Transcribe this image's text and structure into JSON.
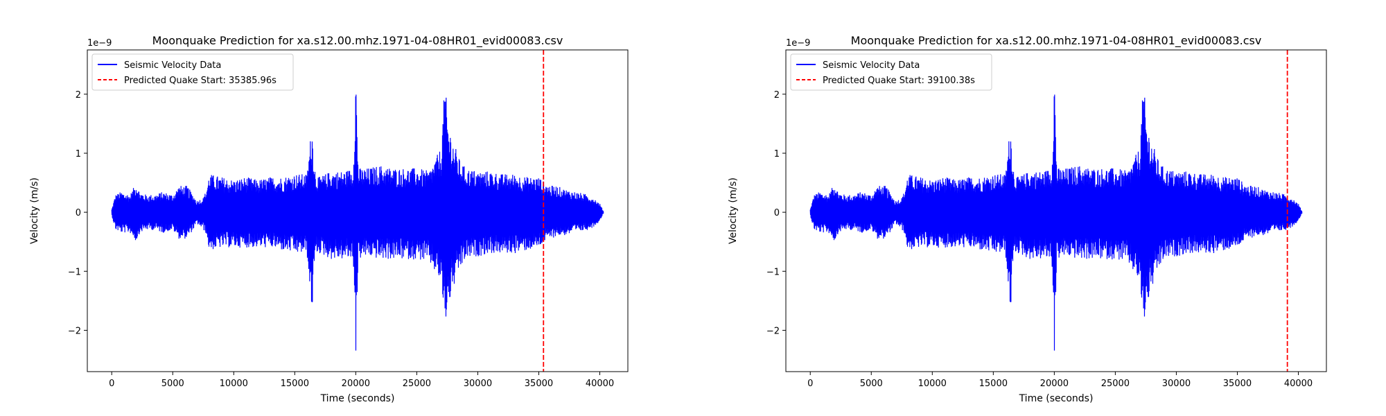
{
  "chart_data": [
    {
      "type": "line",
      "title": "Moonquake Prediction for xa.s12.00.mhz.1971-04-08HR01_evid00083.csv",
      "xlabel": "Time (seconds)",
      "ylabel": "Velocity (m/s)",
      "offset_text": "1e−9",
      "xlim": [
        -2000,
        42300
      ],
      "ylim": [
        -2.7,
        2.75
      ],
      "xticks": [
        0,
        5000,
        10000,
        15000,
        20000,
        25000,
        30000,
        35000,
        40000
      ],
      "yticks": [
        -2,
        -1,
        0,
        1,
        2
      ],
      "ytick_labels": [
        "−2",
        "−1",
        "0",
        "1",
        "2"
      ],
      "legend_position": "top-left",
      "series": [
        {
          "name": "Seismic Velocity Data",
          "color": "#0000ff",
          "style": "solid",
          "envelope": {
            "t": [
              0,
              300,
              800,
              1500,
              2000,
              2300,
              2800,
              3500,
              4200,
              5000,
              5500,
              6200,
              6500,
              7000,
              7500,
              7700,
              8000,
              9000,
              10000,
              11000,
              12000,
              13000,
              14000,
              15000,
              16000,
              16400,
              16700,
              17000,
              18000,
              19000,
              19800,
              20000,
              20200,
              21000,
              22000,
              23000,
              24000,
              25000,
              26000,
              27000,
              27300,
              27600,
              28000,
              28500,
              29000,
              30000,
              31000,
              32000,
              33000,
              34000,
              35000,
              35500,
              36000,
              36500,
              37000,
              38000,
              39000,
              39500,
              40000,
              40300
            ],
            "upper": [
              0.05,
              0.3,
              0.35,
              0.3,
              0.5,
              0.35,
              0.3,
              0.3,
              0.35,
              0.3,
              0.45,
              0.45,
              0.35,
              0.2,
              0.25,
              0.35,
              0.65,
              0.6,
              0.55,
              0.6,
              0.55,
              0.6,
              0.6,
              0.65,
              0.65,
              1.5,
              0.65,
              0.6,
              0.7,
              0.7,
              0.75,
              2.5,
              0.75,
              0.75,
              0.8,
              0.75,
              0.75,
              0.75,
              0.7,
              1.1,
              2.2,
              1.5,
              1.2,
              0.9,
              0.75,
              0.7,
              0.7,
              0.65,
              0.65,
              0.6,
              0.6,
              0.5,
              0.45,
              0.45,
              0.4,
              0.35,
              0.3,
              0.25,
              0.15,
              0.02
            ],
            "lower": [
              -0.05,
              -0.3,
              -0.35,
              -0.35,
              -0.5,
              -0.35,
              -0.3,
              -0.3,
              -0.35,
              -0.3,
              -0.45,
              -0.45,
              -0.35,
              -0.2,
              -0.3,
              -0.35,
              -0.65,
              -0.6,
              -0.6,
              -0.6,
              -0.6,
              -0.6,
              -0.65,
              -0.7,
              -0.7,
              -1.75,
              -0.7,
              -0.7,
              -0.8,
              -0.8,
              -0.8,
              -2.45,
              -0.8,
              -0.75,
              -0.8,
              -0.8,
              -0.8,
              -0.8,
              -0.85,
              -1.2,
              -1.95,
              -1.6,
              -1.3,
              -1.0,
              -0.8,
              -0.75,
              -0.7,
              -0.7,
              -0.7,
              -0.65,
              -0.6,
              -0.5,
              -0.45,
              -0.4,
              -0.4,
              -0.35,
              -0.3,
              -0.25,
              -0.15,
              -0.02
            ]
          }
        },
        {
          "name": "Predicted Quake Start: 35385.96s",
          "color": "#ff0000",
          "style": "dashed",
          "x": 35385.96
        }
      ]
    },
    {
      "type": "line",
      "title": "Moonquake Prediction for xa.s12.00.mhz.1971-04-08HR01_evid00083.csv",
      "xlabel": "Time (seconds)",
      "ylabel": "Velocity (m/s)",
      "offset_text": "1e−9",
      "xlim": [
        -2000,
        42300
      ],
      "ylim": [
        -2.7,
        2.75
      ],
      "xticks": [
        0,
        5000,
        10000,
        15000,
        20000,
        25000,
        30000,
        35000,
        40000
      ],
      "yticks": [
        -2,
        -1,
        0,
        1,
        2
      ],
      "ytick_labels": [
        "−2",
        "−1",
        "0",
        "1",
        "2"
      ],
      "legend_position": "top-left",
      "series": [
        {
          "name": "Seismic Velocity Data",
          "color": "#0000ff",
          "style": "solid",
          "envelope": {
            "t": [
              0,
              300,
              800,
              1500,
              2000,
              2300,
              2800,
              3500,
              4200,
              5000,
              5500,
              6200,
              6500,
              7000,
              7500,
              7700,
              8000,
              9000,
              10000,
              11000,
              12000,
              13000,
              14000,
              15000,
              16000,
              16400,
              16700,
              17000,
              18000,
              19000,
              19800,
              20000,
              20200,
              21000,
              22000,
              23000,
              24000,
              25000,
              26000,
              27000,
              27300,
              27600,
              28000,
              28500,
              29000,
              30000,
              31000,
              32000,
              33000,
              34000,
              35000,
              35500,
              36000,
              36500,
              37000,
              38000,
              39000,
              39500,
              40000,
              40300
            ],
            "upper": [
              0.05,
              0.3,
              0.35,
              0.3,
              0.5,
              0.35,
              0.3,
              0.3,
              0.35,
              0.3,
              0.45,
              0.45,
              0.35,
              0.2,
              0.25,
              0.35,
              0.65,
              0.6,
              0.55,
              0.6,
              0.55,
              0.6,
              0.6,
              0.65,
              0.65,
              1.5,
              0.65,
              0.6,
              0.7,
              0.7,
              0.75,
              2.5,
              0.75,
              0.75,
              0.8,
              0.75,
              0.75,
              0.75,
              0.7,
              1.1,
              2.2,
              1.5,
              1.2,
              0.9,
              0.75,
              0.7,
              0.7,
              0.65,
              0.65,
              0.6,
              0.6,
              0.5,
              0.45,
              0.45,
              0.4,
              0.35,
              0.3,
              0.25,
              0.15,
              0.02
            ],
            "lower": [
              -0.05,
              -0.3,
              -0.35,
              -0.35,
              -0.5,
              -0.35,
              -0.3,
              -0.3,
              -0.35,
              -0.3,
              -0.45,
              -0.45,
              -0.35,
              -0.2,
              -0.3,
              -0.35,
              -0.65,
              -0.6,
              -0.6,
              -0.6,
              -0.6,
              -0.6,
              -0.65,
              -0.7,
              -0.7,
              -1.75,
              -0.7,
              -0.7,
              -0.8,
              -0.8,
              -0.8,
              -2.45,
              -0.8,
              -0.75,
              -0.8,
              -0.8,
              -0.8,
              -0.8,
              -0.85,
              -1.2,
              -1.95,
              -1.6,
              -1.3,
              -1.0,
              -0.8,
              -0.75,
              -0.7,
              -0.7,
              -0.7,
              -0.65,
              -0.6,
              -0.5,
              -0.45,
              -0.4,
              -0.4,
              -0.35,
              -0.3,
              -0.25,
              -0.15,
              -0.02
            ]
          }
        },
        {
          "name": "Predicted Quake Start: 39100.38s",
          "color": "#ff0000",
          "style": "dashed",
          "x": 39100.38
        }
      ]
    }
  ]
}
